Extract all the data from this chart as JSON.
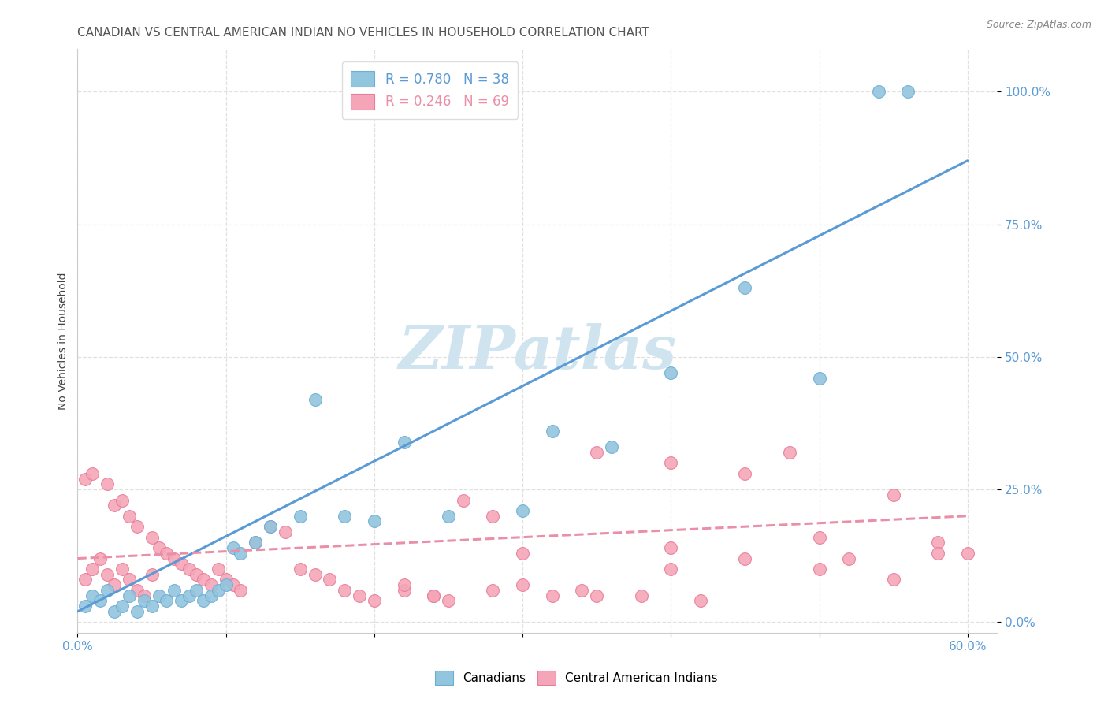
{
  "title": "CANADIAN VS CENTRAL AMERICAN INDIAN NO VEHICLES IN HOUSEHOLD CORRELATION CHART",
  "source": "Source: ZipAtlas.com",
  "ylabel": "No Vehicles in Household",
  "xlim": [
    0.0,
    0.62
  ],
  "ylim": [
    -0.02,
    1.08
  ],
  "yticks": [
    0.0,
    0.25,
    0.5,
    0.75,
    1.0
  ],
  "ytick_labels": [
    "0.0%",
    "25.0%",
    "50.0%",
    "75.0%",
    "100.0%"
  ],
  "xticks": [
    0.0,
    0.1,
    0.2,
    0.3,
    0.4,
    0.5,
    0.6
  ],
  "xtick_labels": [
    "0.0%",
    "",
    "",
    "",
    "",
    "",
    "60.0%"
  ],
  "legend_blue_R": "R = 0.780",
  "legend_blue_N": "N = 38",
  "legend_pink_R": "R = 0.246",
  "legend_pink_N": "N = 69",
  "blue_scatter_color": "#92c5de",
  "blue_edge_color": "#6baed6",
  "pink_scatter_color": "#f4a6b8",
  "pink_edge_color": "#e87d99",
  "blue_line_color": "#5b9bd5",
  "pink_line_color": "#eb8fa8",
  "tick_color": "#5b9bd5",
  "watermark": "ZIPatlas",
  "watermark_color": "#d0e4f0",
  "background_color": "#ffffff",
  "grid_color": "#e0e0e0",
  "canadians_x": [
    0.005,
    0.01,
    0.015,
    0.02,
    0.025,
    0.03,
    0.035,
    0.04,
    0.045,
    0.05,
    0.055,
    0.06,
    0.065,
    0.07,
    0.075,
    0.08,
    0.085,
    0.09,
    0.095,
    0.1,
    0.105,
    0.11,
    0.12,
    0.13,
    0.15,
    0.16,
    0.18,
    0.2,
    0.22,
    0.25,
    0.3,
    0.32,
    0.36,
    0.4,
    0.45,
    0.5,
    0.54,
    0.56
  ],
  "canadians_y": [
    0.03,
    0.05,
    0.04,
    0.06,
    0.02,
    0.03,
    0.05,
    0.02,
    0.04,
    0.03,
    0.05,
    0.04,
    0.06,
    0.04,
    0.05,
    0.06,
    0.04,
    0.05,
    0.06,
    0.07,
    0.14,
    0.13,
    0.15,
    0.18,
    0.2,
    0.42,
    0.2,
    0.19,
    0.34,
    0.2,
    0.21,
    0.36,
    0.33,
    0.47,
    0.63,
    0.46,
    1.0,
    1.0
  ],
  "central_american_x": [
    0.005,
    0.01,
    0.015,
    0.02,
    0.025,
    0.03,
    0.035,
    0.04,
    0.045,
    0.05,
    0.005,
    0.01,
    0.02,
    0.025,
    0.03,
    0.035,
    0.04,
    0.05,
    0.055,
    0.06,
    0.065,
    0.07,
    0.075,
    0.08,
    0.085,
    0.09,
    0.095,
    0.1,
    0.105,
    0.11,
    0.12,
    0.13,
    0.14,
    0.15,
    0.16,
    0.17,
    0.18,
    0.19,
    0.2,
    0.22,
    0.24,
    0.26,
    0.28,
    0.3,
    0.34,
    0.38,
    0.4,
    0.42,
    0.45,
    0.48,
    0.5,
    0.52,
    0.55,
    0.58,
    0.6,
    0.25,
    0.28,
    0.32,
    0.35,
    0.4,
    0.22,
    0.24,
    0.3,
    0.35,
    0.4,
    0.45,
    0.5,
    0.55,
    0.58
  ],
  "central_american_y": [
    0.08,
    0.1,
    0.12,
    0.09,
    0.07,
    0.1,
    0.08,
    0.06,
    0.05,
    0.09,
    0.27,
    0.28,
    0.26,
    0.22,
    0.23,
    0.2,
    0.18,
    0.16,
    0.14,
    0.13,
    0.12,
    0.11,
    0.1,
    0.09,
    0.08,
    0.07,
    0.1,
    0.08,
    0.07,
    0.06,
    0.15,
    0.18,
    0.17,
    0.1,
    0.09,
    0.08,
    0.06,
    0.05,
    0.04,
    0.06,
    0.05,
    0.23,
    0.2,
    0.13,
    0.06,
    0.05,
    0.1,
    0.04,
    0.28,
    0.32,
    0.16,
    0.12,
    0.24,
    0.15,
    0.13,
    0.04,
    0.06,
    0.05,
    0.32,
    0.3,
    0.07,
    0.05,
    0.07,
    0.05,
    0.14,
    0.12,
    0.1,
    0.08,
    0.13
  ],
  "blue_line_x0": 0.0,
  "blue_line_y0": 0.02,
  "blue_line_x1": 0.6,
  "blue_line_y1": 0.87,
  "pink_line_x0": 0.0,
  "pink_line_y0": 0.12,
  "pink_line_x1": 0.6,
  "pink_line_y1": 0.2,
  "title_fontsize": 11,
  "axis_label_fontsize": 10,
  "tick_fontsize": 11,
  "legend_fontsize": 12,
  "watermark_fontsize": 55
}
